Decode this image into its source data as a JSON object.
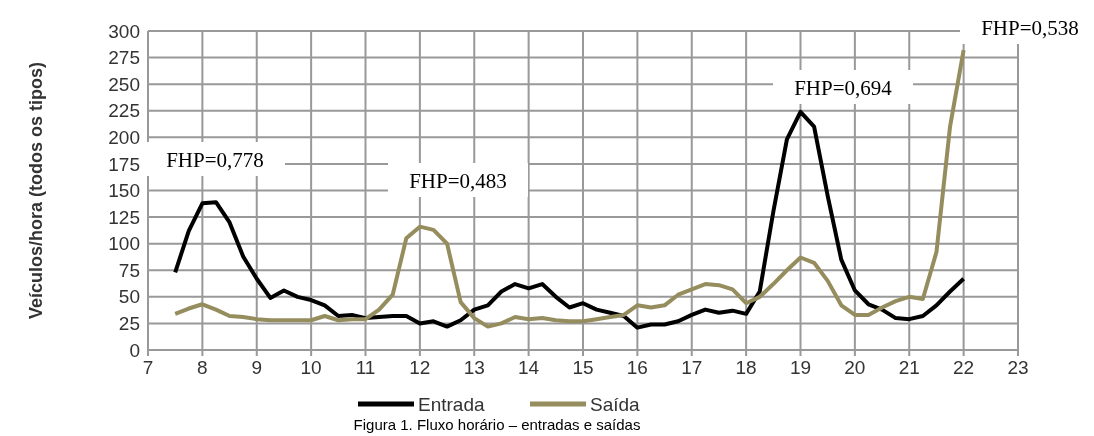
{
  "chart_data": {
    "type": "line",
    "ylabel": "Veículos/hora (todos os tipos)",
    "xlim": [
      7,
      23
    ],
    "xticks": [
      7,
      8,
      9,
      10,
      11,
      12,
      13,
      14,
      15,
      16,
      17,
      18,
      19,
      20,
      21,
      22,
      23
    ],
    "ylim": [
      0,
      300
    ],
    "yticks": [
      0,
      25,
      50,
      75,
      100,
      125,
      150,
      175,
      200,
      225,
      250,
      275,
      300
    ],
    "grid": true,
    "legend": "bottom",
    "line_style": "solid",
    "marker": "none",
    "x": [
      7.5,
      7.75,
      8,
      8.25,
      8.5,
      8.75,
      9,
      9.25,
      9.5,
      9.75,
      10,
      10.25,
      10.5,
      10.75,
      11,
      11.25,
      11.5,
      11.75,
      12,
      12.25,
      12.5,
      12.75,
      13,
      13.25,
      13.5,
      13.75,
      14,
      14.25,
      14.5,
      14.75,
      15,
      15.25,
      15.5,
      15.75,
      16,
      16.25,
      16.5,
      16.75,
      17,
      17.25,
      17.5,
      17.75,
      18,
      18.25,
      18.5,
      18.75,
      19,
      19.25,
      19.5,
      19.75,
      20,
      20.25,
      20.5,
      20.75,
      21,
      21.25,
      21.5,
      21.75,
      22
    ],
    "series": [
      {
        "name": "Entrada",
        "color": "#000000",
        "values": [
          73,
          112,
          138,
          139,
          120,
          88,
          67,
          49,
          56,
          50,
          47,
          42,
          32,
          33,
          30,
          31,
          32,
          32,
          25,
          27,
          22,
          28,
          38,
          42,
          55,
          62,
          58,
          62,
          50,
          40,
          44,
          38,
          35,
          32,
          21,
          24,
          24,
          27,
          33,
          38,
          35,
          37,
          34,
          55,
          130,
          198,
          224,
          210,
          145,
          85,
          56,
          43,
          38,
          30,
          29,
          32,
          42,
          55,
          67
        ]
      },
      {
        "name": "Saída",
        "color": "#958d5e",
        "values": [
          34,
          39,
          43,
          38,
          32,
          31,
          29,
          28,
          28,
          28,
          28,
          32,
          28,
          29,
          29,
          38,
          52,
          105,
          116,
          113,
          100,
          45,
          30,
          22,
          25,
          31,
          29,
          30,
          28,
          27,
          27,
          29,
          31,
          33,
          42,
          40,
          42,
          52,
          57,
          62,
          61,
          57,
          44,
          50,
          62,
          75,
          87,
          82,
          65,
          42,
          33,
          33,
          40,
          46,
          50,
          48,
          92,
          210,
          282
        ]
      }
    ],
    "annotations": [
      "FHP=0,778",
      "FHP=0,483",
      "FHP=0,694",
      "FHP=0,538",
      "Figura 1. Fluxo horário – entradas e saídas"
    ]
  }
}
